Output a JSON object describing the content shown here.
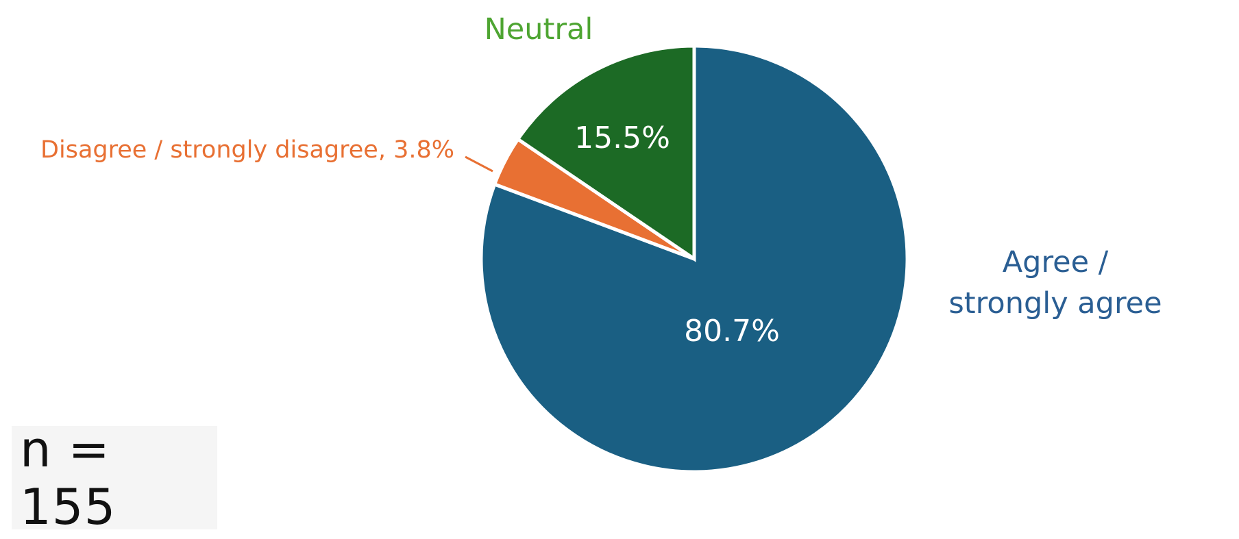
{
  "chart_data": {
    "type": "pie",
    "start_angle_deg": 0,
    "direction": "clockwise",
    "slices": [
      {
        "name": "Agree /\nstrongly agree",
        "label_lines": [
          "Agree /",
          "strongly agree"
        ],
        "value": 80.7,
        "display": "80.7%",
        "color": "#1a5f83",
        "label_color": "#2a5e93"
      },
      {
        "name": "Disagree / strongly disagree",
        "label_lines": [
          "Disagree / strongly disagree, 3.8%"
        ],
        "value": 3.8,
        "display": "",
        "color": "#e87033",
        "label_color": "#e87033"
      },
      {
        "name": "Neutral",
        "label_lines": [
          "Neutral"
        ],
        "value": 15.5,
        "display": "15.5%",
        "color": "#1c6a25",
        "label_color": "#4ea532"
      }
    ]
  },
  "sample_size": "n = 155"
}
